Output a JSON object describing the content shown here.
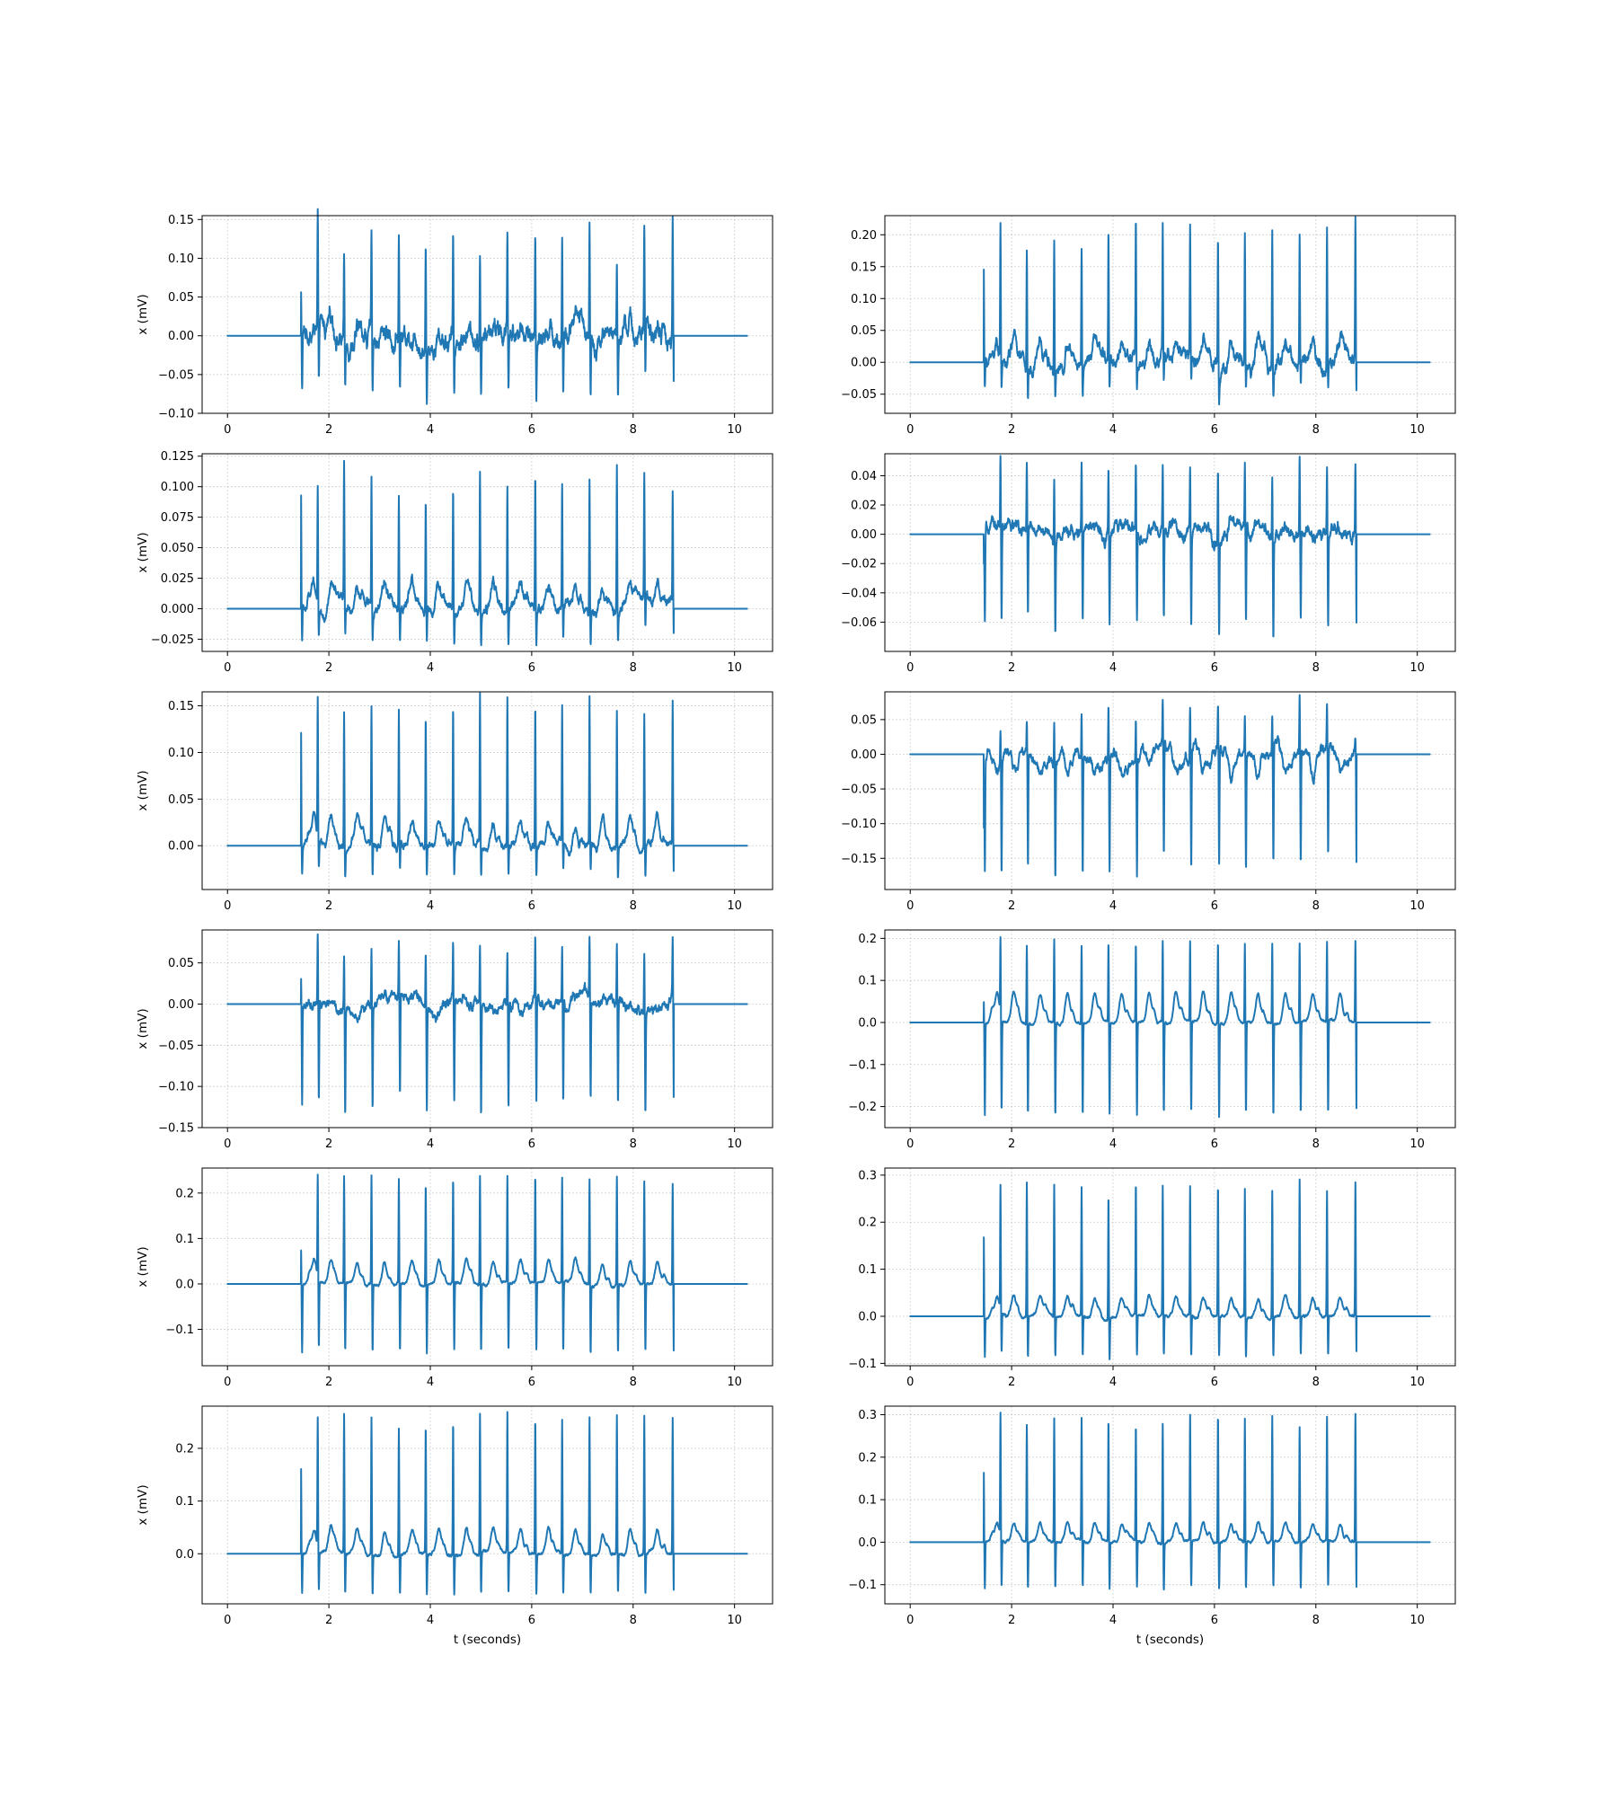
{
  "chart_data": {
    "type": "line",
    "layout": "6 rows x 2 columns",
    "grid": true,
    "line_color": "#1f77b4",
    "shared": {
      "xlim": [
        -0.5,
        10.75
      ],
      "xticks": [
        0,
        2,
        4,
        6,
        8,
        10
      ],
      "signal_start_s": 1.45,
      "signal_end_s": 8.8,
      "beat_times_s": [
        1.45,
        1.78,
        2.3,
        2.84,
        3.38,
        3.91,
        4.45,
        4.98,
        5.52,
        6.07,
        6.6,
        7.14,
        7.68,
        8.22,
        8.78
      ],
      "xlabel_bottom": "t (seconds)",
      "ylabel_left": "x (mV)"
    },
    "panels": [
      {
        "row": 0,
        "col": 0,
        "ylim": [
          -0.1,
          0.155
        ],
        "yticks": [
          -0.1,
          -0.05,
          0.0,
          0.05,
          0.1,
          0.15
        ],
        "r_peak": 0.13,
        "s_trough": -0.07,
        "t_wave": 0.01,
        "noise": 0.012,
        "first_beat": 0.06,
        "r_peaks": [
          0.06,
          0.14,
          0.1,
          0.135,
          0.13,
          0.13,
          0.13,
          0.125,
          0.13,
          0.135,
          0.14,
          0.145,
          0.095,
          0.13,
          0.145
        ]
      },
      {
        "row": 0,
        "col": 1,
        "ylim": [
          -0.08,
          0.23
        ],
        "yticks": [
          -0.05,
          0.0,
          0.05,
          0.1,
          0.15,
          0.2
        ],
        "r_peak": 0.205,
        "s_trough": -0.045,
        "t_wave": 0.035,
        "noise": 0.01,
        "first_beat": 0.155,
        "r_peaks": [
          0.155,
          0.21,
          0.19,
          0.21,
          0.19,
          0.2,
          0.215,
          0.2,
          0.2,
          0.205,
          0.2,
          0.21,
          0.19,
          0.21,
          0.225
        ]
      },
      {
        "row": 1,
        "col": 0,
        "ylim": [
          -0.035,
          0.127
        ],
        "yticks": [
          -0.025,
          0.0,
          0.025,
          0.05,
          0.075,
          0.1,
          0.125
        ],
        "r_peak": 0.1,
        "s_trough": -0.025,
        "t_wave": 0.02,
        "noise": 0.004,
        "first_beat": 0.098,
        "r_peaks": [
          0.098,
          0.1,
          0.113,
          0.104,
          0.093,
          0.092,
          0.1,
          0.115,
          0.106,
          0.112,
          0.102,
          0.109,
          0.12,
          0.098,
          0.089
        ]
      },
      {
        "row": 1,
        "col": 1,
        "ylim": [
          -0.08,
          0.055
        ],
        "yticks": [
          -0.06,
          -0.04,
          -0.02,
          0.0,
          0.02,
          0.04
        ],
        "r_peak": 0.045,
        "s_trough": -0.062,
        "t_wave": 0.005,
        "noise": 0.004,
        "first_beat": -0.02,
        "r_peaks": [
          -0.02,
          0.052,
          0.045,
          0.045,
          0.048,
          0.045,
          0.045,
          0.045,
          0.045,
          0.05,
          0.045,
          0.048,
          0.05,
          0.045,
          0.05
        ]
      },
      {
        "row": 2,
        "col": 0,
        "ylim": [
          -0.047,
          0.165
        ],
        "yticks": [
          0.0,
          0.05,
          0.1,
          0.15
        ],
        "r_peak": 0.15,
        "s_trough": -0.03,
        "t_wave": 0.03,
        "noise": 0.004,
        "first_beat": 0.128,
        "r_peaks": [
          0.128,
          0.148,
          0.148,
          0.15,
          0.142,
          0.14,
          0.148,
          0.162,
          0.16,
          0.15,
          0.148,
          0.158,
          0.152,
          0.15,
          0.155
        ]
      },
      {
        "row": 2,
        "col": 1,
        "ylim": [
          -0.195,
          0.09
        ],
        "yticks": [
          -0.15,
          -0.1,
          -0.05,
          0.0,
          0.05
        ],
        "r_peak": 0.03,
        "s_trough": -0.165,
        "t_wave": -0.03,
        "noise": 0.007,
        "first_beat": -0.108,
        "r_peaks": [
          -0.108,
          0.05,
          0.05,
          0.06,
          0.07,
          0.08,
          0.06,
          0.06,
          0.07,
          0.06,
          0.06,
          0.05,
          0.08,
          0.06,
          0.02
        ]
      },
      {
        "row": 3,
        "col": 0,
        "ylim": [
          -0.15,
          0.09
        ],
        "yticks": [
          -0.15,
          -0.1,
          -0.05,
          0.0,
          0.05
        ],
        "r_peak": 0.065,
        "s_trough": -0.125,
        "t_wave": 0.0,
        "noise": 0.006,
        "first_beat": 0.03,
        "r_peaks": [
          0.03,
          0.082,
          0.07,
          0.07,
          0.065,
          0.07,
          0.07,
          0.07,
          0.07,
          0.07,
          0.07,
          0.07,
          0.07,
          0.07,
          0.07
        ]
      },
      {
        "row": 3,
        "col": 1,
        "ylim": [
          -0.25,
          0.22
        ],
        "yticks": [
          -0.2,
          -0.1,
          0.0,
          0.1,
          0.2
        ],
        "r_peak": 0.19,
        "s_trough": -0.22,
        "t_wave": 0.07,
        "noise": 0.003,
        "first_beat": 0.055,
        "r_peaks": [
          0.055,
          0.18,
          0.185,
          0.2,
          0.185,
          0.19,
          0.19,
          0.19,
          0.19,
          0.195,
          0.19,
          0.19,
          0.19,
          0.19,
          0.19
        ]
      },
      {
        "row": 4,
        "col": 0,
        "ylim": [
          -0.18,
          0.255
        ],
        "yticks": [
          -0.1,
          0.0,
          0.1,
          0.2
        ],
        "r_peak": 0.23,
        "s_trough": -0.15,
        "t_wave": 0.05,
        "noise": 0.003,
        "first_beat": 0.08,
        "r_peaks": [
          0.08,
          0.225,
          0.235,
          0.24,
          0.23,
          0.225,
          0.23,
          0.24,
          0.235,
          0.235,
          0.235,
          0.235,
          0.24,
          0.23,
          0.225
        ]
      },
      {
        "row": 4,
        "col": 1,
        "ylim": [
          -0.105,
          0.315
        ],
        "yticks": [
          -0.1,
          0.0,
          0.1,
          0.2,
          0.3
        ],
        "r_peak": 0.275,
        "s_trough": -0.085,
        "t_wave": 0.04,
        "noise": 0.003,
        "first_beat": 0.178,
        "r_peaks": [
          0.178,
          0.265,
          0.285,
          0.28,
          0.275,
          0.265,
          0.285,
          0.275,
          0.275,
          0.28,
          0.275,
          0.27,
          0.29,
          0.265,
          0.285
        ]
      },
      {
        "row": 5,
        "col": 0,
        "ylim": [
          -0.095,
          0.28
        ],
        "yticks": [
          0.0,
          0.1,
          0.2
        ],
        "r_peak": 0.255,
        "s_trough": -0.075,
        "t_wave": 0.045,
        "noise": 0.003,
        "first_beat": 0.17,
        "r_peaks": [
          0.17,
          0.248,
          0.265,
          0.262,
          0.245,
          0.245,
          0.255,
          0.268,
          0.265,
          0.258,
          0.255,
          0.26,
          0.265,
          0.26,
          0.258
        ]
      },
      {
        "row": 5,
        "col": 1,
        "ylim": [
          -0.145,
          0.32
        ],
        "yticks": [
          -0.1,
          0.0,
          0.1,
          0.2,
          0.3
        ],
        "r_peak": 0.285,
        "s_trough": -0.11,
        "t_wave": 0.045,
        "noise": 0.003,
        "first_beat": 0.173,
        "r_peaks": [
          0.173,
          0.29,
          0.275,
          0.29,
          0.29,
          0.29,
          0.275,
          0.285,
          0.295,
          0.3,
          0.29,
          0.295,
          0.27,
          0.29,
          0.305
        ]
      }
    ]
  }
}
